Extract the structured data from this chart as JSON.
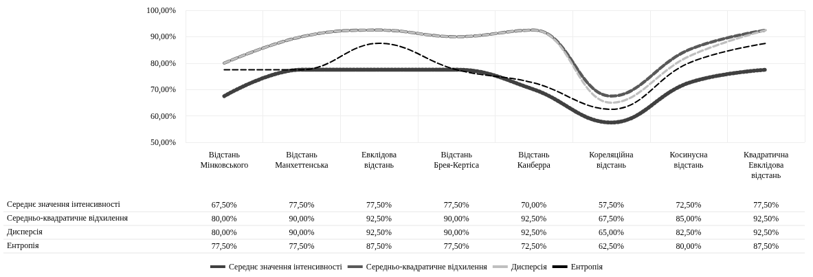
{
  "chart_data": {
    "type": "line",
    "categories": [
      "Відстань Мінковського",
      "Відстань Манхеттенська",
      "Евклідова відстань",
      "Відстань Брея-Кертіса",
      "Відстань Канберра",
      "Кореляційна відстань",
      "Косинусна відстань",
      "Квадратична Евклідова відстань"
    ],
    "series": [
      {
        "name": "Середнє значення інтенсивності",
        "color": "#404040",
        "line_style": "dotted",
        "values": [
          67.5,
          77.5,
          77.5,
          77.5,
          70.0,
          57.5,
          72.5,
          77.5
        ],
        "value_labels": [
          "67,50%",
          "77,50%",
          "77,50%",
          "77,50%",
          "70,00%",
          "57,50%",
          "72,50%",
          "77,50%"
        ]
      },
      {
        "name": "Середньо-квадратичне відхилення",
        "color": "#595959",
        "line_style": "dashed",
        "values": [
          80.0,
          90.0,
          92.5,
          90.0,
          92.5,
          67.5,
          85.0,
          92.5
        ],
        "value_labels": [
          "80,00%",
          "90,00%",
          "92,50%",
          "90,00%",
          "92,50%",
          "67,50%",
          "85,00%",
          "92,50%"
        ]
      },
      {
        "name": "Дисперсія",
        "color": "#bfbfbf",
        "line_style": "dashed",
        "values": [
          80.0,
          90.0,
          92.5,
          90.0,
          92.5,
          65.0,
          82.5,
          92.5
        ],
        "value_labels": [
          "80,00%",
          "90,00%",
          "92,50%",
          "90,00%",
          "92,50%",
          "65,00%",
          "82,50%",
          "92,50%"
        ]
      },
      {
        "name": "Ентропія",
        "color": "#000000",
        "line_style": "dashed",
        "values": [
          77.5,
          77.5,
          87.5,
          77.5,
          72.5,
          62.5,
          80.0,
          87.5
        ],
        "value_labels": [
          "77,50%",
          "77,50%",
          "87,50%",
          "77,50%",
          "72,50%",
          "62,50%",
          "80,00%",
          "87,50%"
        ]
      }
    ],
    "ylim": [
      50,
      100
    ],
    "yticks": [
      {
        "value": 50,
        "label": "50,00%"
      },
      {
        "value": 60,
        "label": "60,00%"
      },
      {
        "value": 70,
        "label": "70,00%"
      },
      {
        "value": 80,
        "label": "80,00%"
      },
      {
        "value": 90,
        "label": "90,00%"
      },
      {
        "value": 100,
        "label": "100,00%"
      }
    ],
    "grid": true,
    "legend": "bottom",
    "marker": "none"
  }
}
